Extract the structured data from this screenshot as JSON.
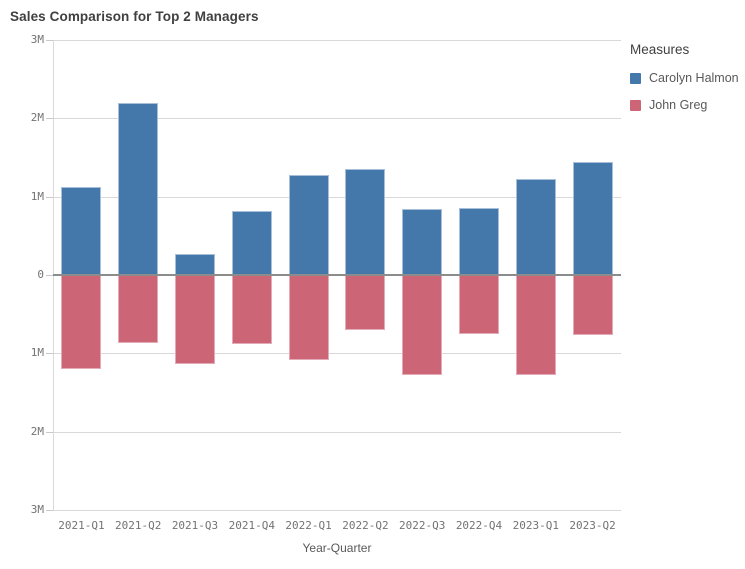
{
  "header": {
    "title": "Sales Comparison for Top 2 Managers"
  },
  "legend": {
    "title": "Measures"
  },
  "colors": {
    "series_blue": "#4477aa",
    "series_rose": "#cc6677",
    "grid": "#d9d9d9",
    "zero_line": "#8c8c8c",
    "tick_label": "#737373",
    "axis_title": "#595959",
    "title_text": "#404040"
  },
  "chart_data": {
    "type": "bar",
    "subtype": "diverging-vertical",
    "title": "Sales Comparison for Top 2 Managers",
    "xlabel": "Year-Quarter",
    "ylabel": "",
    "unit": "millions",
    "ylim_M": [
      -3,
      3
    ],
    "grid": "horizontal",
    "legend_position": "right",
    "legend_title": "Measures",
    "y_ticks": [
      {
        "value_M": 3,
        "label": "3M"
      },
      {
        "value_M": 2,
        "label": "2M"
      },
      {
        "value_M": 1,
        "label": "1M"
      },
      {
        "value_M": 0,
        "label": "0"
      },
      {
        "value_M": -1,
        "label": "1M"
      },
      {
        "value_M": -2,
        "label": "2M"
      },
      {
        "value_M": -3,
        "label": "3M"
      }
    ],
    "categories": [
      "2021-Q1",
      "2021-Q2",
      "2021-Q3",
      "2021-Q4",
      "2022-Q1",
      "2022-Q2",
      "2022-Q3",
      "2022-Q4",
      "2023-Q1",
      "2023-Q2"
    ],
    "series": [
      {
        "name": "Carolyn Halmon",
        "color": "#4477aa",
        "border_color": "#a7bfd9",
        "values_M": [
          1.12,
          2.19,
          0.27,
          0.81,
          1.27,
          1.35,
          0.84,
          0.86,
          1.23,
          1.44
        ]
      },
      {
        "name": "John Greg",
        "color": "#cc6677",
        "border_color": "#e3abb7",
        "values_M": [
          -1.2,
          -0.87,
          -1.13,
          -0.88,
          -1.09,
          -0.7,
          -1.27,
          -0.75,
          -1.27,
          -0.77
        ]
      }
    ]
  }
}
